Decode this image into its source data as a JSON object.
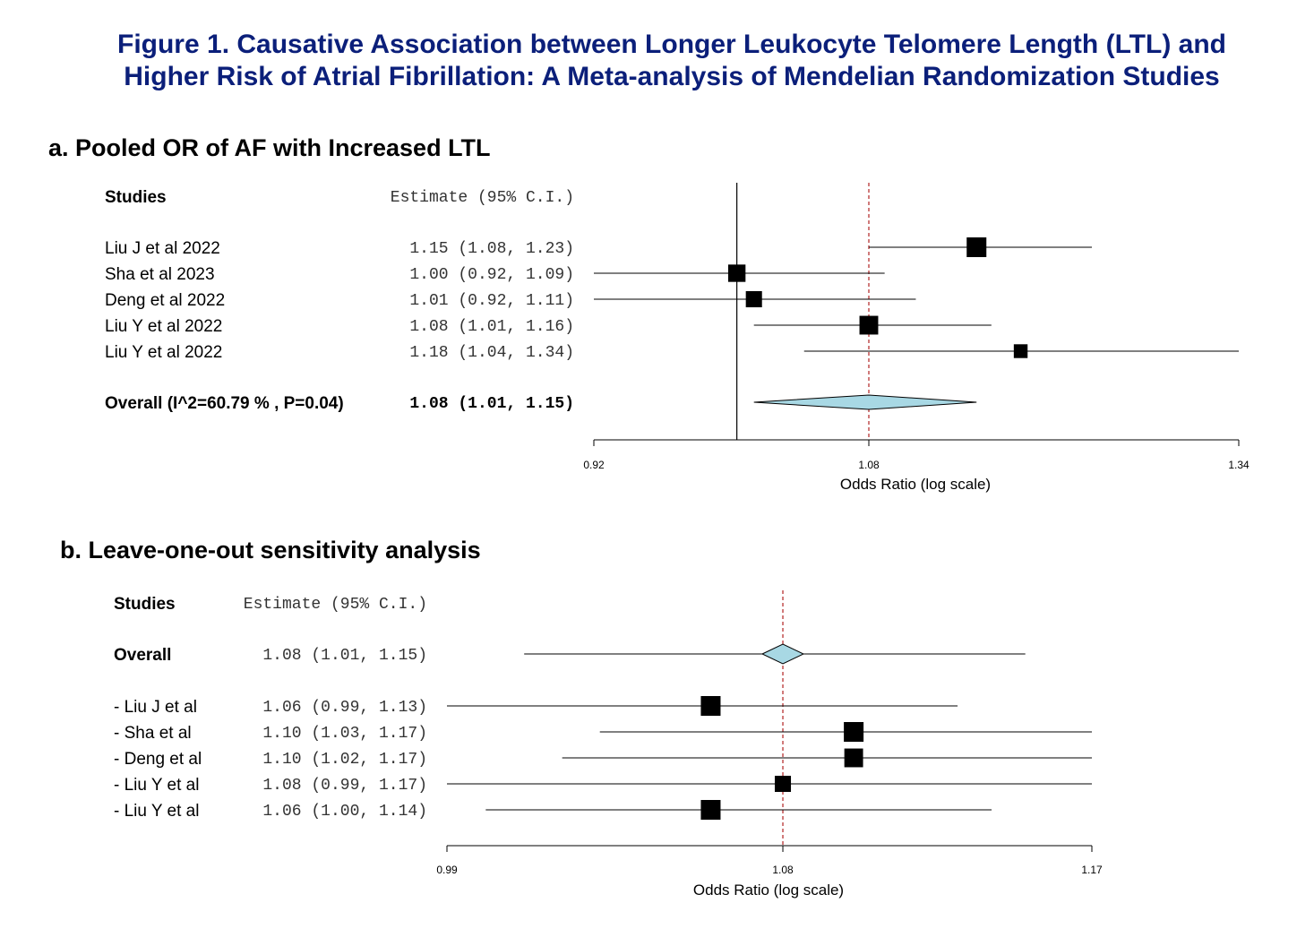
{
  "figure_title_line1": "Figure 1. Causative Association between Longer Leukocyte Telomere Length (LTL) and",
  "figure_title_line2": "Higher Risk of Atrial Fibrillation: A Meta-analysis of Mendelian Randomization Studies",
  "colors": {
    "title": "#0b1f7a",
    "diamond": "#a8d8e4",
    "ref_line": "#b22222"
  },
  "chart_data": [
    {
      "type": "forest",
      "panel_title": "a. Pooled OR of AF with Increased LTL",
      "studies_header": "Studies",
      "estimate_header": "Estimate (95% C.I.)",
      "xlabel": "Odds Ratio (log scale)",
      "xlim": [
        0.92,
        1.34
      ],
      "ticks": [
        "0.92",
        "1.08",
        "1.34"
      ],
      "tick_values": [
        0.92,
        1.08,
        1.34
      ],
      "null_line": 1.0,
      "pooled_line": 1.08,
      "rows": [
        {
          "label": "Liu J et al 2022",
          "estimate_text": "1.15 (1.08, 1.23)",
          "est": 1.15,
          "lo": 1.08,
          "hi": 1.23,
          "weight": 1.0
        },
        {
          "label": "Sha et al 2023",
          "estimate_text": "1.00 (0.92, 1.09)",
          "est": 1.0,
          "lo": 0.92,
          "hi": 1.09,
          "weight": 0.88
        },
        {
          "label": "Deng et al 2022",
          "estimate_text": "1.01 (0.92, 1.11)",
          "est": 1.01,
          "lo": 0.92,
          "hi": 1.11,
          "weight": 0.82
        },
        {
          "label": "Liu Y et al  2022",
          "estimate_text": "1.08 (1.01, 1.16)",
          "est": 1.08,
          "lo": 1.01,
          "hi": 1.16,
          "weight": 0.95
        },
        {
          "label": "Liu Y et al 2022",
          "estimate_text": "1.18 (1.04, 1.34)",
          "est": 1.18,
          "lo": 1.04,
          "hi": 1.34,
          "weight": 0.7
        }
      ],
      "overall": {
        "label": "Overall (I^2=60.79 % , P=0.04)",
        "estimate_text": "1.08 (1.01, 1.15)",
        "est": 1.08,
        "lo": 1.01,
        "hi": 1.15
      }
    },
    {
      "type": "forest",
      "panel_title": "b. Leave-one-out sensitivity analysis",
      "studies_header": "Studies",
      "estimate_header": "Estimate (95% C.I.)",
      "xlabel": "Odds Ratio (log scale)",
      "xlim": [
        0.99,
        1.17
      ],
      "ticks": [
        "0.99",
        "1.08",
        "1.17"
      ],
      "tick_values": [
        0.99,
        1.08,
        1.17
      ],
      "pooled_line": 1.08,
      "overall": {
        "label": "Overall",
        "estimate_text": "1.08 (1.01, 1.15)",
        "est": 1.08,
        "lo": 1.01,
        "hi": 1.15
      },
      "rows": [
        {
          "label": "- Liu J et al",
          "estimate_text": "1.06 (0.99, 1.13)",
          "est": 1.06,
          "lo": 0.99,
          "hi": 1.13,
          "weight": 1.0
        },
        {
          "label": "- Sha et al",
          "estimate_text": "1.10 (1.03, 1.17)",
          "est": 1.1,
          "lo": 1.03,
          "hi": 1.17,
          "weight": 1.0
        },
        {
          "label": "- Deng et al",
          "estimate_text": "1.10 (1.02, 1.17)",
          "est": 1.1,
          "lo": 1.02,
          "hi": 1.17,
          "weight": 0.95
        },
        {
          "label": "- Liu Y et al",
          "estimate_text": "1.08 (0.99, 1.17)",
          "est": 1.08,
          "lo": 0.99,
          "hi": 1.17,
          "weight": 0.82
        },
        {
          "label": "- Liu Y et al",
          "estimate_text": "1.06 (1.00, 1.14)",
          "est": 1.06,
          "lo": 1.0,
          "hi": 1.14,
          "weight": 1.0
        }
      ]
    }
  ]
}
